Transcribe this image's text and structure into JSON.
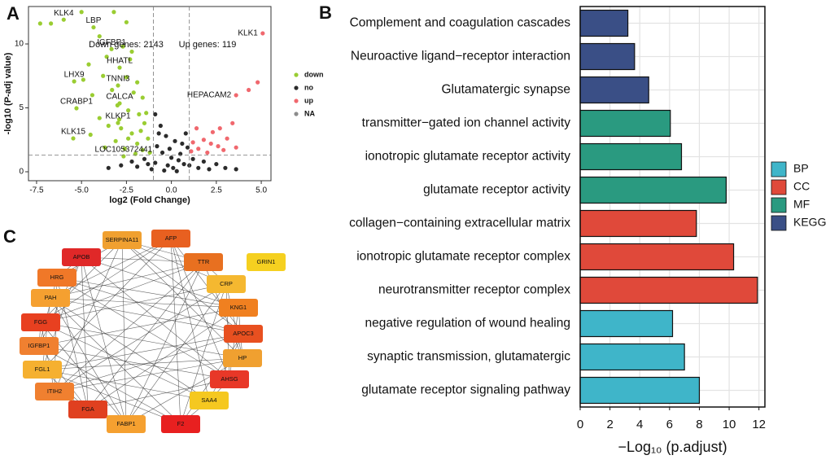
{
  "chart_data": [
    {
      "type": "scatter",
      "panel": "A",
      "xlabel": "log2 (Fold Change)",
      "ylabel": "-log10 (P-adj value)",
      "annotations": [
        "Down genes: 2143",
        "Up genes: 119"
      ],
      "xlim": [
        -7.95,
        5.54
      ],
      "ylim": [
        -0.7,
        12.93
      ],
      "xticks": [
        {
          "value": -7.5,
          "label": "-7.5"
        },
        {
          "value": -5,
          "label": "-5.0"
        },
        {
          "value": -2.5,
          "label": "-2.5"
        },
        {
          "value": 0,
          "label": "0.0"
        },
        {
          "value": 2.5,
          "label": "2.5"
        },
        {
          "value": 5,
          "label": "5.0"
        }
      ],
      "yticks": [
        0,
        5,
        10
      ],
      "vlines": [
        -1,
        1
      ],
      "hline": 1.3,
      "series": [
        {
          "name": "down",
          "color": "#9acd32",
          "x": [
            -5.99,
            -4.33,
            -3.33,
            -2.88,
            -2.97,
            -5.41,
            -2.88,
            -5.28,
            -2.97,
            -5.46,
            -2.66,
            -7.3,
            -6.7,
            -5.0,
            -3.2,
            -2.5,
            -4.0,
            -2.7,
            -2.2,
            -3.6,
            -4.6,
            -2.3,
            -3.8,
            -4.9,
            -2.5,
            -1.9,
            -3.3,
            -4.4,
            -2.1,
            -1.6,
            -3.0,
            -2.4,
            -1.8,
            -4.0,
            -3.5,
            -2.8,
            -1.5,
            -2.2,
            -1.3,
            -3.1,
            -1.9,
            -2.6,
            -1.6,
            -1.2,
            -3.7,
            -4.5,
            -2.0,
            -1.4,
            -2.9,
            -1.7,
            -2.4
          ],
          "values": [
            11.9,
            11.3,
            9.6,
            8.15,
            6.75,
            7.07,
            5.35,
            4.97,
            3.82,
            2.61,
            1.21,
            11.6,
            11.6,
            12.5,
            12.5,
            11.7,
            10.6,
            9.8,
            9.4,
            9.0,
            8.4,
            8.8,
            7.5,
            7.2,
            7.4,
            7.0,
            6.4,
            6.0,
            6.2,
            5.8,
            5.2,
            4.8,
            4.5,
            4.2,
            3.6,
            3.4,
            3.8,
            3.0,
            2.6,
            2.4,
            2.2,
            1.8,
            1.7,
            1.5,
            1.9,
            2.9,
            1.4,
            4.6,
            4.1,
            3.2,
            2.6
          ],
          "labels": [
            "KLK4",
            "LBP",
            "IGFBP1",
            "HHATL",
            "TNNI3",
            "LHX9",
            "CALCA",
            "CRABP1",
            "KLKP1",
            "KLK15",
            "LOC105372441",
            null,
            null,
            null,
            null,
            null,
            null,
            null,
            null,
            null,
            null,
            null,
            null,
            null,
            null,
            null,
            null,
            null,
            null,
            null,
            null,
            null,
            null,
            null,
            null,
            null,
            null,
            null,
            null,
            null,
            null,
            null,
            null,
            null,
            null,
            null,
            null,
            null,
            null,
            null,
            null
          ]
        },
        {
          "name": "no",
          "color": "#2b2b2b",
          "x": [
            -0.9,
            -0.6,
            -0.3,
            0.2,
            0.6,
            0.9,
            -0.8,
            -0.5,
            0,
            0.4,
            -0.2,
            0.7,
            1.2,
            1.8,
            2.5,
            3.0,
            3.6,
            -1.5,
            -2.2,
            -2.8,
            -3.5,
            -1.1,
            -0.4,
            0.3,
            1.5,
            -0.7,
            -0.1,
            0.5,
            -1.9,
            2.1,
            -0.9,
            1.0,
            -1.3,
            0.8,
            0.1
          ],
          "values": [
            4.5,
            3.6,
            2.8,
            2.4,
            2.2,
            1.9,
            2.0,
            1.5,
            1.1,
            0.9,
            0.5,
            0.6,
            1.0,
            0.8,
            0.6,
            0.3,
            0.2,
            1.0,
            0.8,
            0.5,
            0.3,
            0.2,
            0.1,
            0.05,
            0.3,
            3.0,
            1.8,
            1.4,
            0.4,
            0.2,
            0.7,
            0.5,
            0.6,
            3.0,
            0.3
          ]
        },
        {
          "name": "up",
          "color": "#f0686e",
          "x": [
            1.2,
            1.5,
            1.8,
            2.0,
            2.3,
            2.6,
            2.9,
            3.1,
            1.4,
            2.2,
            3.4,
            3.6,
            1.1,
            2.7,
            4.3,
            4.8,
            5.08,
            3.6
          ],
          "values": [
            2.3,
            1.8,
            2.5,
            1.5,
            3.1,
            2.0,
            1.7,
            2.6,
            3.4,
            2.2,
            3.8,
            1.9,
            1.6,
            3.4,
            6.4,
            7.0,
            10.83,
            5.99
          ],
          "labels": [
            null,
            null,
            null,
            null,
            null,
            null,
            null,
            null,
            null,
            null,
            null,
            null,
            null,
            null,
            null,
            null,
            "KLK1",
            "HEPACAM2"
          ]
        },
        {
          "name": "NA",
          "color": "#8c8c8c",
          "x": [],
          "values": []
        }
      ]
    },
    {
      "type": "barh",
      "panel": "B",
      "xlabel": "−Log₁₀ (p.adjust)",
      "categories": [
        "Complement and coagulation cascades",
        "Neuroactive ligand−receptor interaction",
        "Glutamatergic synapse",
        "transmitter−gated ion channel activity",
        "ionotropic glutamate receptor activity",
        "glutamate receptor activity",
        "collagen−containing extracellular matrix",
        "ionotropic glutamate receptor complex",
        "neurotransmitter receptor complex",
        "negative regulation of wound healing",
        "synaptic transmission, glutamatergic",
        "glutamate receptor signaling pathway"
      ],
      "values": [
        3.2,
        3.65,
        4.6,
        6.05,
        6.8,
        9.8,
        7.8,
        10.3,
        11.9,
        6.2,
        7.0,
        8.0
      ],
      "groups": [
        "KEGG",
        "KEGG",
        "KEGG",
        "MF",
        "MF",
        "MF",
        "CC",
        "CC",
        "CC",
        "BP",
        "BP",
        "BP"
      ],
      "legend": [
        {
          "name": "BP",
          "color": "#3fb5c9"
        },
        {
          "name": "CC",
          "color": "#e0493a"
        },
        {
          "name": "MF",
          "color": "#2a9a80"
        },
        {
          "name": "KEGG",
          "color": "#3a4f86"
        }
      ],
      "xlim": [
        0,
        12.4
      ],
      "xticks": [
        0,
        2,
        4,
        6,
        8,
        10,
        12
      ],
      "grid": true
    },
    {
      "type": "network",
      "panel": "C",
      "nodes": [
        {
          "label": "SERPINA11",
          "color": "#f0a030"
        },
        {
          "label": "AFP",
          "color": "#e86020"
        },
        {
          "label": "APOB",
          "color": "#e02828"
        },
        {
          "label": "TTR",
          "color": "#e87020"
        },
        {
          "label": "GRIN1",
          "color": "#f5d020"
        },
        {
          "label": "HRG",
          "color": "#f07828"
        },
        {
          "label": "CRP",
          "color": "#f5b830"
        },
        {
          "label": "PAH",
          "color": "#f5a030"
        },
        {
          "label": "KNG1",
          "color": "#f08020"
        },
        {
          "label": "FGG",
          "color": "#e84020"
        },
        {
          "label": "APOC3",
          "color": "#e85020"
        },
        {
          "label": "IGFBP1",
          "color": "#f08030"
        },
        {
          "label": "HP",
          "color": "#f0a030"
        },
        {
          "label": "FGL1",
          "color": "#f5b030"
        },
        {
          "label": "AHSG",
          "color": "#e83828"
        },
        {
          "label": "ITIH2",
          "color": "#f08030"
        },
        {
          "label": "SAA4",
          "color": "#f5c820"
        },
        {
          "label": "FGA",
          "color": "#e04020"
        },
        {
          "label": "FABP1",
          "color": "#f5a030"
        },
        {
          "label": "F2",
          "color": "#e82020"
        }
      ]
    }
  ]
}
